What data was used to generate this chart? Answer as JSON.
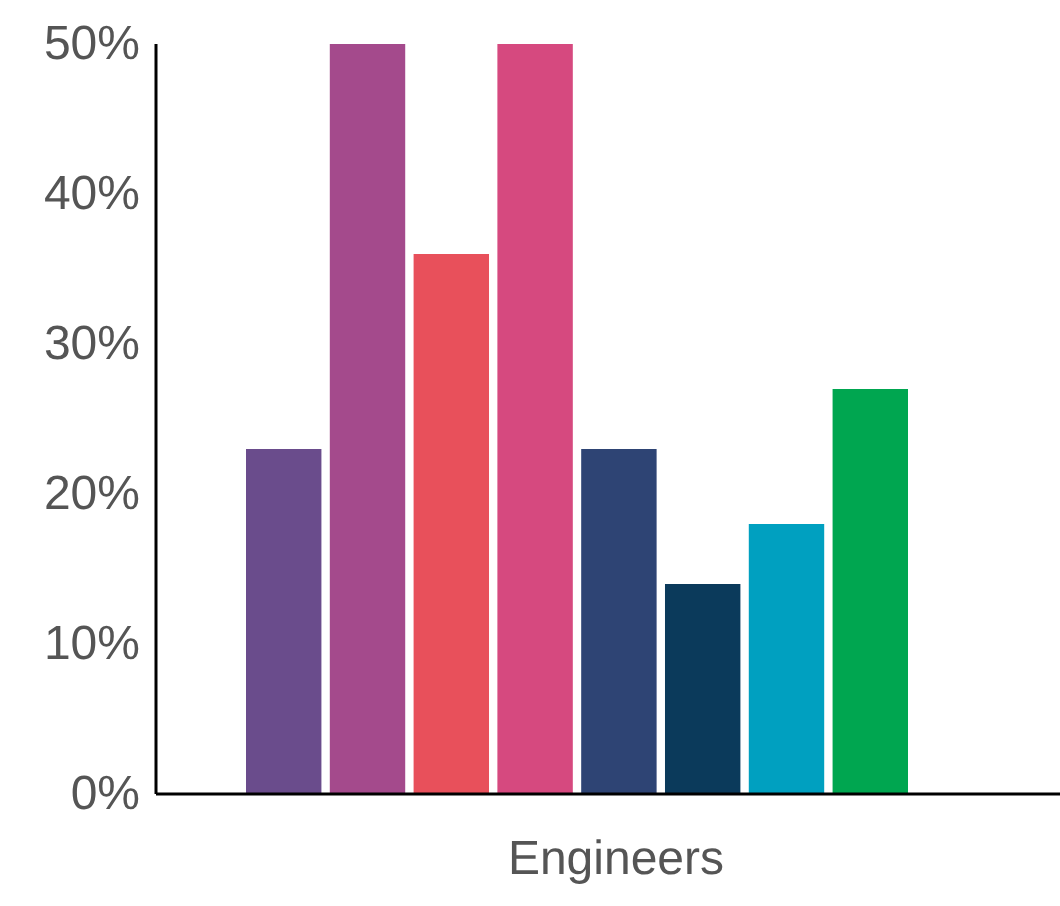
{
  "chart_data": {
    "type": "bar",
    "xlabel": "Engineers",
    "categories": [
      null,
      null,
      null,
      null,
      null,
      null,
      null,
      null
    ],
    "values": [
      23,
      50,
      36,
      50,
      23,
      14,
      18,
      27
    ],
    "colors": [
      "#6a4c8c",
      "#a44a8c",
      "#e8505b",
      "#d6497f",
      "#2e4474",
      "#0b3a5b",
      "#00a0c0",
      "#00a650"
    ],
    "ylim": [
      0,
      50
    ],
    "yticks": [
      {
        "value": 0,
        "label": "0%"
      },
      {
        "value": 10,
        "label": "10%"
      },
      {
        "value": 20,
        "label": "20%"
      },
      {
        "value": 30,
        "label": "30%"
      },
      {
        "value": 40,
        "label": "40%"
      },
      {
        "value": 50,
        "label": "50%"
      }
    ],
    "grid": false
  }
}
